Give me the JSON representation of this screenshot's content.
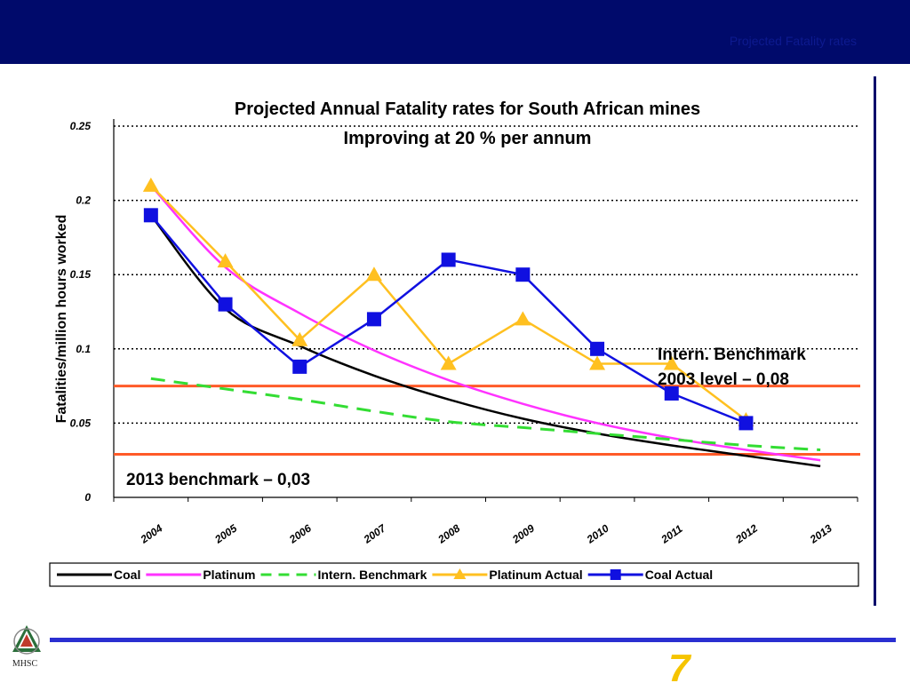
{
  "header": {
    "title": "Projected Fatality rates"
  },
  "footer": {
    "logo_text": "MHSC",
    "page_number": "7"
  },
  "colors": {
    "header_bg": "#000a6b",
    "coal": "#000000",
    "platinum": "#ff33ff",
    "benchmark": "#33dd33",
    "platinum_actual": "#ffc020",
    "coal_actual": "#1010e0",
    "reference_lines": "#ff5a28"
  },
  "chart_data": {
    "type": "line",
    "title": "Projected Annual Fatality rates for South African mines",
    "subtitle": "Improving at 20 % per annum",
    "xlabel": "",
    "ylabel": "Fatalities/million hours worked",
    "categories": [
      "2004",
      "2005",
      "2006",
      "2007",
      "2008",
      "2009",
      "2010",
      "2011",
      "2012",
      "2013"
    ],
    "ylim": [
      0,
      0.25
    ],
    "yticks": [
      0,
      0.05,
      0.1,
      0.15,
      0.2,
      0.25
    ],
    "ytick_labels": [
      "0",
      "0.05",
      "0.1",
      "0.15",
      "0.2",
      "0.25"
    ],
    "grid": "horizontal dotted",
    "legend_position": "bottom",
    "series": [
      {
        "name": "Coal",
        "color": "#000000",
        "style": "solid",
        "marker": "none",
        "values": [
          0.19,
          0.127,
          0.102,
          0.082,
          0.066,
          0.053,
          0.043,
          0.035,
          0.028,
          0.021
        ]
      },
      {
        "name": "Platinum",
        "color": "#ff33ff",
        "style": "solid",
        "marker": "none",
        "values": [
          0.21,
          0.155,
          0.124,
          0.099,
          0.079,
          0.063,
          0.05,
          0.04,
          0.032,
          0.025
        ]
      },
      {
        "name": "Intern. Benchmark",
        "color": "#33dd33",
        "style": "dashed",
        "marker": "none",
        "values": [
          0.08,
          0.073,
          0.066,
          0.058,
          0.051,
          0.047,
          0.043,
          0.039,
          0.035,
          0.032
        ]
      },
      {
        "name": "Platinum Actual",
        "color": "#ffc020",
        "style": "solid",
        "marker": "triangle",
        "values": [
          0.21,
          0.159,
          0.106,
          0.15,
          0.09,
          0.12,
          0.09,
          0.09,
          0.052,
          null
        ]
      },
      {
        "name": "Coal Actual",
        "color": "#1010e0",
        "style": "solid",
        "marker": "square",
        "values": [
          0.19,
          0.13,
          0.088,
          0.12,
          0.16,
          0.15,
          0.1,
          0.07,
          0.05,
          null
        ]
      }
    ],
    "reference_lines": [
      {
        "value": 0.075,
        "color": "#ff5a28"
      },
      {
        "value": 0.029,
        "color": "#ff5a28"
      }
    ],
    "annotations": [
      {
        "line1": "Intern. Benchmark",
        "line2": "2003 level – 0,08"
      },
      {
        "line1": "2013 benchmark – 0,03"
      }
    ]
  }
}
